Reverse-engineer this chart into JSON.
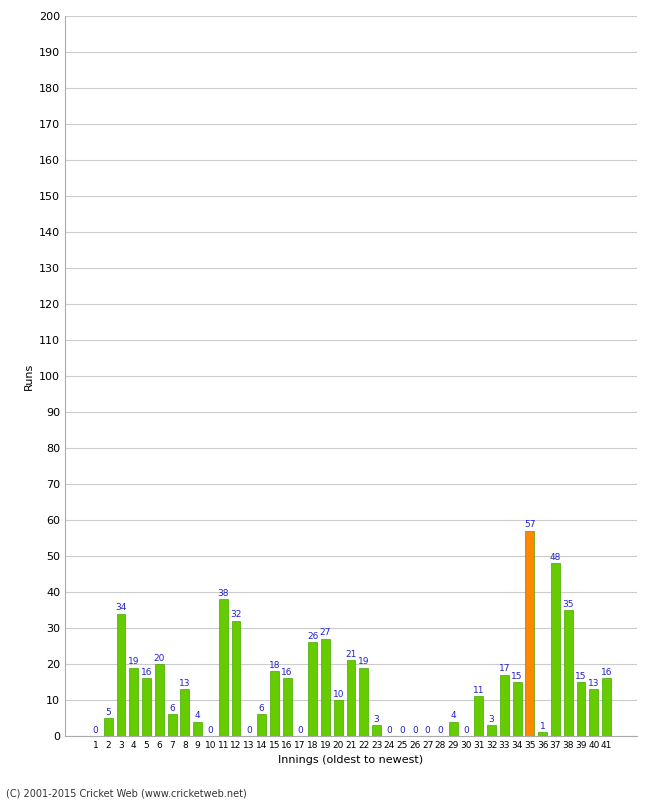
{
  "innings": [
    1,
    2,
    3,
    4,
    5,
    6,
    7,
    8,
    9,
    10,
    11,
    12,
    13,
    14,
    15,
    16,
    17,
    18,
    19,
    20,
    21,
    22,
    23,
    24,
    25,
    26,
    27,
    28,
    29,
    30,
    31,
    32,
    33,
    34,
    35,
    36,
    37,
    38,
    39,
    40,
    41
  ],
  "values": [
    0,
    5,
    34,
    19,
    16,
    20,
    6,
    13,
    4,
    0,
    38,
    32,
    0,
    6,
    18,
    16,
    0,
    26,
    27,
    10,
    21,
    19,
    3,
    0,
    0,
    0,
    0,
    0,
    4,
    0,
    11,
    3,
    17,
    15,
    57,
    1,
    48,
    35,
    15,
    13,
    16
  ],
  "colors": [
    "#66cc00",
    "#66cc00",
    "#66cc00",
    "#66cc00",
    "#66cc00",
    "#66cc00",
    "#66cc00",
    "#66cc00",
    "#66cc00",
    "#66cc00",
    "#66cc00",
    "#66cc00",
    "#66cc00",
    "#66cc00",
    "#66cc00",
    "#66cc00",
    "#66cc00",
    "#66cc00",
    "#66cc00",
    "#66cc00",
    "#66cc00",
    "#66cc00",
    "#66cc00",
    "#66cc00",
    "#66cc00",
    "#66cc00",
    "#66cc00",
    "#66cc00",
    "#66cc00",
    "#66cc00",
    "#66cc00",
    "#66cc00",
    "#66cc00",
    "#66cc00",
    "#ff8800",
    "#66cc00",
    "#66cc00",
    "#66cc00",
    "#66cc00",
    "#66cc00",
    "#66cc00"
  ],
  "xlabel": "Innings (oldest to newest)",
  "ylabel": "Runs",
  "ylim": [
    0,
    200
  ],
  "yticks": [
    0,
    10,
    20,
    30,
    40,
    50,
    60,
    70,
    80,
    90,
    100,
    110,
    120,
    130,
    140,
    150,
    160,
    170,
    180,
    190,
    200
  ],
  "label_color": "#2222cc",
  "label_fontsize": 6.5,
  "bar_edge_color": "#44aa00",
  "background_color": "#ffffff",
  "grid_color": "#cccccc",
  "footer": "(C) 2001-2015 Cricket Web (www.cricketweb.net)"
}
